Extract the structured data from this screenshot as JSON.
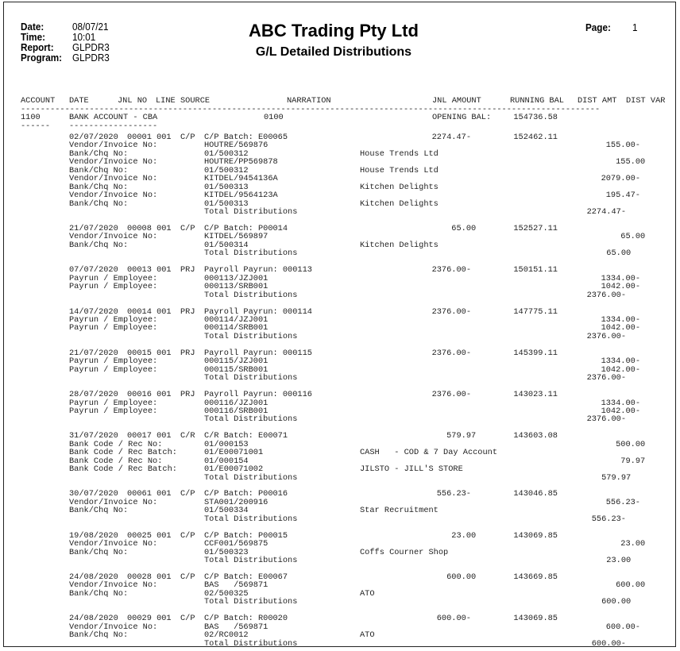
{
  "header": {
    "date_label": "Date:",
    "date": "08/07/21",
    "time_label": "Time:",
    "time": "10:01",
    "report_label": "Report:",
    "report": "GLPDR3",
    "program_label": "Program:",
    "program": "GLPDR3",
    "company": "ABC Trading Pty Ltd",
    "report_title": "G/L Detailed Distributions",
    "page_label": "Page:",
    "page": "1"
  },
  "columns": [
    "ACCOUNT",
    "DATE",
    "JNL NO",
    "LINE",
    "SOURCE",
    "NARRATION",
    "JNL AMOUNT",
    "RUNNING BAL",
    "DIST AMT",
    "DIST VAR"
  ],
  "account": {
    "number": "1100",
    "name": "BANK ACCOUNT - CBA",
    "code": "0100",
    "opening_label": "OPENING BAL:",
    "opening_balance": "154736.58"
  },
  "entries": [
    {
      "date": "02/07/2020",
      "jnl": "00001 001",
      "source": "C/P",
      "narration": "C/P Batch: E00065",
      "amount": "2274.47-",
      "running": "152462.11",
      "lines": [
        {
          "label": "Vendor/Invoice No:",
          "value": "HOUTRE/569876",
          "party": "",
          "dist": "155.00-"
        },
        {
          "label": "Bank/Chq No:",
          "value": "01/500312",
          "party": "House Trends Ltd",
          "dist": ""
        },
        {
          "label": "Vendor/Invoice No:",
          "value": "HOUTRE/PP569878",
          "party": "",
          "dist": "155.00"
        },
        {
          "label": "Bank/Chq No:",
          "value": "01/500312",
          "party": "House Trends Ltd",
          "dist": ""
        },
        {
          "label": "Vendor/Invoice No:",
          "value": "KITDEL/9454136A",
          "party": "",
          "dist": "2079.00-"
        },
        {
          "label": "Bank/Chq No:",
          "value": "01/500313",
          "party": "Kitchen Delights",
          "dist": ""
        },
        {
          "label": "Vendor/Invoice No:",
          "value": "KITDEL/9564123A",
          "party": "",
          "dist": "195.47-"
        },
        {
          "label": "Bank/Chq No:",
          "value": "01/500313",
          "party": "Kitchen Delights",
          "dist": ""
        }
      ],
      "total_label": "Total Distributions",
      "total": "2274.47-"
    },
    {
      "date": "21/07/2020",
      "jnl": "00008 001",
      "source": "C/P",
      "narration": "C/P Batch: P00014",
      "amount": "65.00",
      "running": "152527.11",
      "lines": [
        {
          "label": "Vendor/Invoice No:",
          "value": "KITDEL/569897",
          "party": "",
          "dist": "65.00"
        },
        {
          "label": "Bank/Chq No:",
          "value": "01/500314",
          "party": "Kitchen Delights",
          "dist": ""
        }
      ],
      "total_label": "Total Distributions",
      "total": "65.00"
    },
    {
      "date": "07/07/2020",
      "jnl": "00013 001",
      "source": "PRJ",
      "narration": "Payroll Payrun: 000113",
      "amount": "2376.00-",
      "running": "150151.11",
      "lines": [
        {
          "label": "Payrun / Employee:",
          "value": "000113/JZJ001",
          "party": "",
          "dist": "1334.00-"
        },
        {
          "label": "Payrun / Employee:",
          "value": "000113/SRB001",
          "party": "",
          "dist": "1042.00-"
        }
      ],
      "total_label": "Total Distributions",
      "total": "2376.00-"
    },
    {
      "date": "14/07/2020",
      "jnl": "00014 001",
      "source": "PRJ",
      "narration": "Payroll Payrun: 000114",
      "amount": "2376.00-",
      "running": "147775.11",
      "lines": [
        {
          "label": "Payrun / Employee:",
          "value": "000114/JZJ001",
          "party": "",
          "dist": "1334.00-"
        },
        {
          "label": "Payrun / Employee:",
          "value": "000114/SRB001",
          "party": "",
          "dist": "1042.00-"
        }
      ],
      "total_label": "Total Distributions",
      "total": "2376.00-"
    },
    {
      "date": "21/07/2020",
      "jnl": "00015 001",
      "source": "PRJ",
      "narration": "Payroll Payrun: 000115",
      "amount": "2376.00-",
      "running": "145399.11",
      "lines": [
        {
          "label": "Payrun / Employee:",
          "value": "000115/JZJ001",
          "party": "",
          "dist": "1334.00-"
        },
        {
          "label": "Payrun / Employee:",
          "value": "000115/SRB001",
          "party": "",
          "dist": "1042.00-"
        }
      ],
      "total_label": "Total Distributions",
      "total": "2376.00-"
    },
    {
      "date": "28/07/2020",
      "jnl": "00016 001",
      "source": "PRJ",
      "narration": "Payroll Payrun: 000116",
      "amount": "2376.00-",
      "running": "143023.11",
      "lines": [
        {
          "label": "Payrun / Employee:",
          "value": "000116/JZJ001",
          "party": "",
          "dist": "1334.00-"
        },
        {
          "label": "Payrun / Employee:",
          "value": "000116/SRB001",
          "party": "",
          "dist": "1042.00-"
        }
      ],
      "total_label": "Total Distributions",
      "total": "2376.00-"
    },
    {
      "date": "31/07/2020",
      "jnl": "00017 001",
      "source": "C/R",
      "narration": "C/R Batch: E00071",
      "amount": "579.97",
      "running": "143603.08",
      "lines": [
        {
          "label": "Bank Code / Rec No:",
          "value": "01/000153",
          "party": "",
          "dist": "500.00"
        },
        {
          "label": "Bank Code / Rec Batch:",
          "value": "01/E00071001",
          "party": "CASH   - COD & 7 Day Account",
          "dist": ""
        },
        {
          "label": "Bank Code / Rec No:",
          "value": "01/000154",
          "party": "",
          "dist": "79.97"
        },
        {
          "label": "Bank Code / Rec Batch:",
          "value": "01/E00071002",
          "party": "JILSTO - JILL'S STORE",
          "dist": ""
        }
      ],
      "total_label": "Total Distributions",
      "total": "579.97"
    },
    {
      "date": "30/07/2020",
      "jnl": "00061 001",
      "source": "C/P",
      "narration": "C/P Batch: P00016",
      "amount": "556.23-",
      "running": "143046.85",
      "lines": [
        {
          "label": "Vendor/Invoice No:",
          "value": "STA001/200916",
          "party": "",
          "dist": "556.23-"
        },
        {
          "label": "Bank/Chq No:",
          "value": "01/500334",
          "party": "Star Recruitment",
          "dist": ""
        }
      ],
      "total_label": "Total Distributions",
      "total": "556.23-"
    },
    {
      "date": "19/08/2020",
      "jnl": "00025 001",
      "source": "C/P",
      "narration": "C/P Batch: P00015",
      "amount": "23.00",
      "running": "143069.85",
      "lines": [
        {
          "label": "Vendor/Invoice No:",
          "value": "CCF001/569875",
          "party": "",
          "dist": "23.00"
        },
        {
          "label": "Bank/Chq No:",
          "value": "01/500323",
          "party": "Coffs Courner Shop",
          "dist": ""
        }
      ],
      "total_label": "Total Distributions",
      "total": "23.00"
    },
    {
      "date": "24/08/2020",
      "jnl": "00028 001",
      "source": "C/P",
      "narration": "C/P Batch: E00067",
      "amount": "600.00",
      "running": "143669.85",
      "lines": [
        {
          "label": "Vendor/Invoice No:",
          "value": "BAS   /569871",
          "party": "",
          "dist": "600.00"
        },
        {
          "label": "Bank/Chq No:",
          "value": "02/500325",
          "party": "ATO",
          "dist": ""
        }
      ],
      "total_label": "Total Distributions",
      "total": "600.00"
    },
    {
      "date": "24/08/2020",
      "jnl": "00029 001",
      "source": "C/P",
      "narration": "C/P Batch: R00020",
      "amount": "600.00-",
      "running": "143069.85",
      "lines": [
        {
          "label": "Vendor/Invoice No:",
          "value": "BAS   /569871",
          "party": "",
          "dist": "600.00-"
        },
        {
          "label": "Bank/Chq No:",
          "value": "02/RC0012",
          "party": "ATO",
          "dist": ""
        }
      ],
      "total_label": "Total Distributions",
      "total": "600.00-"
    }
  ]
}
